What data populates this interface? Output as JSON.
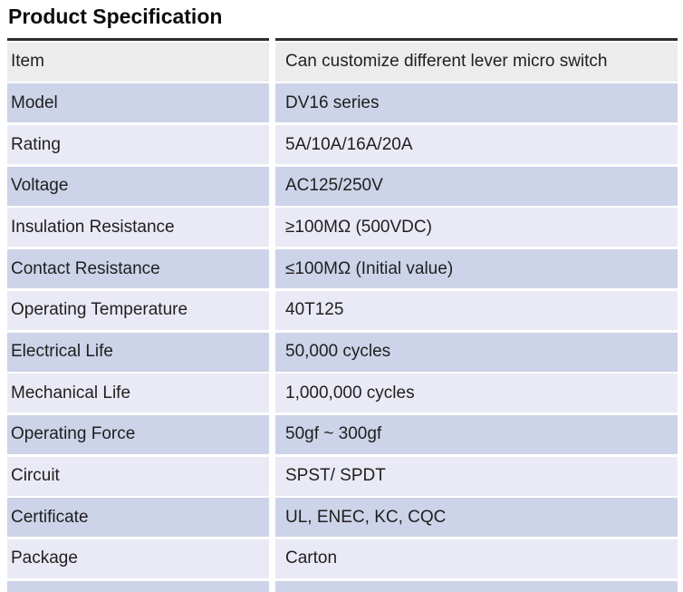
{
  "title": "Product Specification",
  "table": {
    "colors": {
      "header": "#ececec",
      "dark": "#cdd3e8",
      "light": "#e9eaf5",
      "border": "#2f2f2f"
    },
    "rows": [
      {
        "label": "Item",
        "value": "Can customize different lever micro switch",
        "shade": "header"
      },
      {
        "label": "Model",
        "value": "DV16 series",
        "shade": "dark"
      },
      {
        "label": "Rating",
        "value": "5A/10A/16A/20A",
        "shade": "light"
      },
      {
        "label": "Voltage",
        "value": "AC125/250V",
        "shade": "dark"
      },
      {
        "label": "Insulation Resistance",
        "value": "≥100MΩ (500VDC)",
        "shade": "light"
      },
      {
        "label": "Contact Resistance",
        "value": "≤100MΩ (Initial value)",
        "shade": "dark"
      },
      {
        "label": "Operating Temperature",
        "value": "40T125",
        "shade": "light"
      },
      {
        "label": "Electrical Life",
        "value": "50,000 cycles",
        "shade": "dark"
      },
      {
        "label": "Mechanical Life",
        "value": "1,000,000 cycles",
        "shade": "light"
      },
      {
        "label": "Operating Force",
        "value": "50gf ~ 300gf",
        "shade": "dark"
      },
      {
        "label": "Circuit",
        "value": "SPST/ SPDT",
        "shade": "light"
      },
      {
        "label": "Certificate",
        "value": "UL, ENEC, KC, CQC",
        "shade": "dark"
      },
      {
        "label": "Package",
        "value": "Carton",
        "shade": "light"
      }
    ],
    "cutoff_row_shade": "dark"
  }
}
